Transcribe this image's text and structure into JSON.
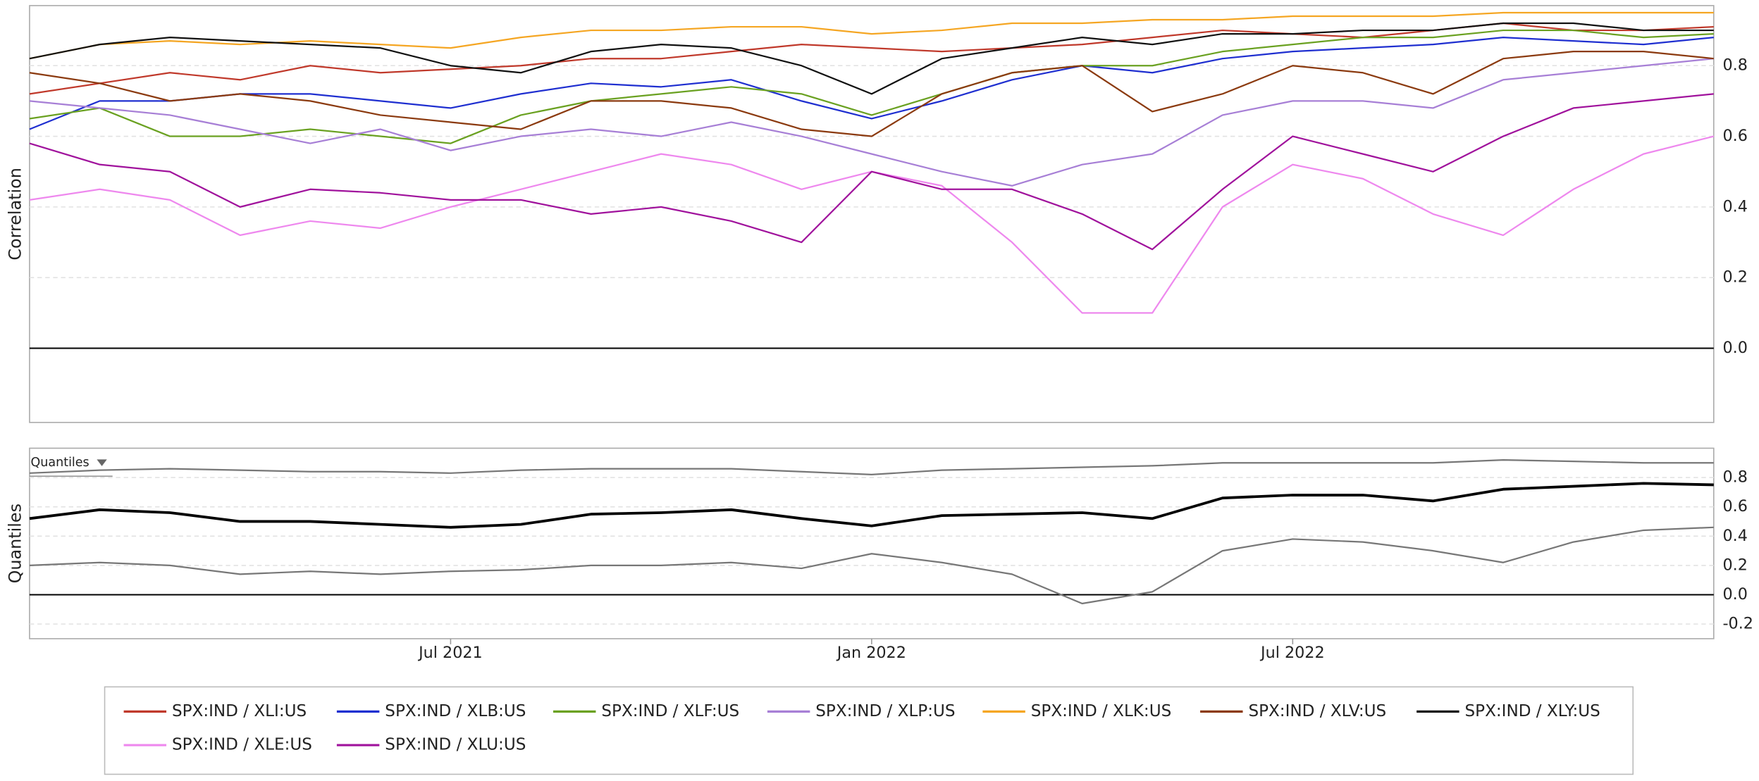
{
  "chart_data": [
    {
      "type": "line",
      "y_label": "Correlation",
      "x": [
        "2021-01",
        "2021-02",
        "2021-03",
        "2021-04",
        "2021-05",
        "2021-06",
        "2021-07",
        "2021-08",
        "2021-09",
        "2021-10",
        "2021-11",
        "2021-12",
        "2022-01",
        "2022-02",
        "2022-03",
        "2022-04",
        "2022-05",
        "2022-06",
        "2022-07",
        "2022-08",
        "2022-09",
        "2022-10",
        "2022-11",
        "2022-12",
        "2023-01"
      ],
      "xlim": [
        "2021-01",
        "2023-01"
      ],
      "ylim": [
        -0.21,
        0.97
      ],
      "yticks": [
        {
          "value": 0,
          "label": "0.0"
        },
        0.2,
        0.4,
        0.6,
        0.8
      ],
      "grid": true,
      "series": [
        {
          "name": "SPX:IND / XLI:US",
          "color": "#c0392b",
          "values": [
            0.72,
            0.75,
            0.78,
            0.76,
            0.8,
            0.78,
            0.79,
            0.8,
            0.82,
            0.82,
            0.84,
            0.86,
            0.85,
            0.84,
            0.85,
            0.86,
            0.88,
            0.9,
            0.89,
            0.88,
            0.9,
            0.92,
            0.9,
            0.9,
            0.91
          ]
        },
        {
          "name": "SPX:IND / XLB:US",
          "color": "#1f2fd0",
          "values": [
            0.62,
            0.7,
            0.7,
            0.72,
            0.72,
            0.7,
            0.68,
            0.72,
            0.75,
            0.74,
            0.76,
            0.7,
            0.65,
            0.7,
            0.76,
            0.8,
            0.78,
            0.82,
            0.84,
            0.85,
            0.86,
            0.88,
            0.87,
            0.86,
            0.88
          ]
        },
        {
          "name": "SPX:IND / XLF:US",
          "color": "#6aa121",
          "values": [
            0.65,
            0.68,
            0.6,
            0.6,
            0.62,
            0.6,
            0.58,
            0.66,
            0.7,
            0.72,
            0.74,
            0.72,
            0.66,
            0.72,
            0.78,
            0.8,
            0.8,
            0.84,
            0.86,
            0.88,
            0.88,
            0.9,
            0.9,
            0.88,
            0.89
          ]
        },
        {
          "name": "SPX:IND / XLP:US",
          "color": "#a77fd6",
          "values": [
            0.7,
            0.68,
            0.66,
            0.62,
            0.58,
            0.62,
            0.56,
            0.6,
            0.62,
            0.6,
            0.64,
            0.6,
            0.55,
            0.5,
            0.46,
            0.52,
            0.55,
            0.66,
            0.7,
            0.7,
            0.68,
            0.76,
            0.78,
            0.8,
            0.82
          ]
        },
        {
          "name": "SPX:IND / XLK:US",
          "color": "#f5a623",
          "values": [
            0.82,
            0.86,
            0.87,
            0.86,
            0.87,
            0.86,
            0.85,
            0.88,
            0.9,
            0.9,
            0.91,
            0.91,
            0.89,
            0.9,
            0.92,
            0.92,
            0.93,
            0.93,
            0.94,
            0.94,
            0.94,
            0.95,
            0.95,
            0.95,
            0.95
          ]
        },
        {
          "name": "SPX:IND / XLV:US",
          "color": "#8b3a0f",
          "values": [
            0.78,
            0.75,
            0.7,
            0.72,
            0.7,
            0.66,
            0.64,
            0.62,
            0.7,
            0.7,
            0.68,
            0.62,
            0.6,
            0.72,
            0.78,
            0.8,
            0.67,
            0.72,
            0.8,
            0.78,
            0.72,
            0.82,
            0.84,
            0.84,
            0.82
          ]
        },
        {
          "name": "SPX:IND / XLY:US",
          "color": "#111111",
          "values": [
            0.82,
            0.86,
            0.88,
            0.87,
            0.86,
            0.85,
            0.8,
            0.78,
            0.84,
            0.86,
            0.85,
            0.8,
            0.72,
            0.82,
            0.85,
            0.88,
            0.86,
            0.89,
            0.89,
            0.9,
            0.9,
            0.92,
            0.92,
            0.9,
            0.9
          ]
        },
        {
          "name": "SPX:IND / XLE:US",
          "color": "#ee88ee",
          "values": [
            0.42,
            0.45,
            0.42,
            0.32,
            0.36,
            0.34,
            0.4,
            0.45,
            0.5,
            0.55,
            0.52,
            0.45,
            0.5,
            0.46,
            0.3,
            0.1,
            0.1,
            0.4,
            0.52,
            0.48,
            0.38,
            0.32,
            0.45,
            0.55,
            0.6
          ]
        },
        {
          "name": "SPX:IND / XLU:US",
          "color": "#a0129c",
          "values": [
            0.58,
            0.52,
            0.5,
            0.4,
            0.45,
            0.44,
            0.42,
            0.42,
            0.38,
            0.4,
            0.36,
            0.3,
            0.5,
            0.45,
            0.45,
            0.38,
            0.28,
            0.45,
            0.6,
            0.55,
            0.5,
            0.6,
            0.68,
            0.7,
            0.72
          ]
        }
      ]
    },
    {
      "type": "line",
      "y_label": "Quantiles",
      "selector": "Quantiles",
      "x": [
        "2021-01",
        "2021-02",
        "2021-03",
        "2021-04",
        "2021-05",
        "2021-06",
        "2021-07",
        "2021-08",
        "2021-09",
        "2021-10",
        "2021-11",
        "2021-12",
        "2022-01",
        "2022-02",
        "2022-03",
        "2022-04",
        "2022-05",
        "2022-06",
        "2022-07",
        "2022-08",
        "2022-09",
        "2022-10",
        "2022-11",
        "2022-12",
        "2023-01"
      ],
      "xlim": [
        "2021-01",
        "2023-01"
      ],
      "xticks": [
        {
          "value": "2021-07",
          "label": "Jul 2021"
        },
        {
          "value": "2022-01",
          "label": "Jan 2022"
        },
        {
          "value": "2022-07",
          "label": "Jul 2022"
        }
      ],
      "ylim": [
        -0.3,
        1.0
      ],
      "yticks": [
        -0.2,
        {
          "value": 0,
          "label": "0.0"
        },
        0.2,
        0.4,
        0.6,
        0.8
      ],
      "grid": true,
      "series": [
        {
          "color": "#777777",
          "values": [
            0.83,
            0.85,
            0.86,
            0.85,
            0.84,
            0.84,
            0.83,
            0.85,
            0.86,
            0.86,
            0.86,
            0.84,
            0.82,
            0.85,
            0.86,
            0.87,
            0.88,
            0.9,
            0.9,
            0.9,
            0.9,
            0.92,
            0.91,
            0.9,
            0.9
          ]
        },
        {
          "color": "#000000",
          "values": [
            0.52,
            0.58,
            0.56,
            0.5,
            0.5,
            0.48,
            0.46,
            0.48,
            0.55,
            0.56,
            0.58,
            0.52,
            0.47,
            0.54,
            0.55,
            0.56,
            0.52,
            0.66,
            0.68,
            0.68,
            0.64,
            0.72,
            0.74,
            0.76,
            0.75
          ]
        },
        {
          "color": "#777777",
          "values": [
            0.2,
            0.22,
            0.2,
            0.14,
            0.16,
            0.14,
            0.16,
            0.17,
            0.2,
            0.2,
            0.22,
            0.18,
            0.28,
            0.22,
            0.14,
            -0.06,
            0.02,
            0.3,
            0.38,
            0.36,
            0.3,
            0.22,
            0.36,
            0.44,
            0.46
          ]
        }
      ]
    }
  ]
}
